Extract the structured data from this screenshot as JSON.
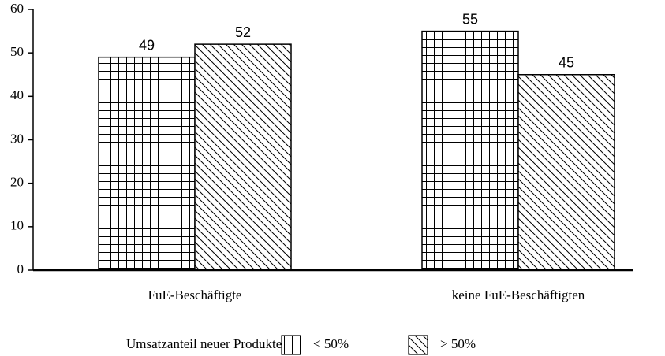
{
  "chart_data": {
    "type": "bar",
    "categories": [
      "FuE-Beschäftigte",
      "keine FuE-Beschäftigten"
    ],
    "series": [
      {
        "name": "< 50%",
        "color": "#000000",
        "pattern": "grid",
        "values": [
          49,
          55
        ]
      },
      {
        "name": "> 50%",
        "color": "#000000",
        "pattern": "diagonal",
        "values": [
          52,
          45
        ]
      }
    ],
    "legend_title": "Umsatzanteil neuer Produkte:",
    "ylim": [
      0,
      60
    ],
    "yticks": [
      0,
      10,
      20,
      30,
      40,
      50,
      60
    ],
    "grid": false
  }
}
